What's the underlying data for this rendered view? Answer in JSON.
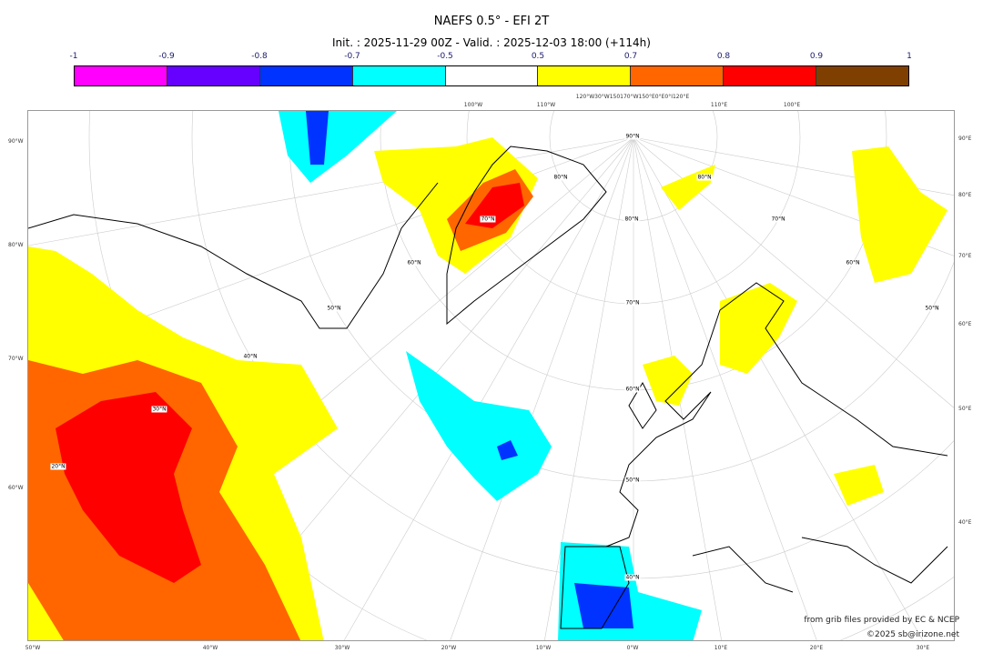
{
  "title": "NAEFS 0.5° - EFI 2T",
  "subtitle": "Init. : 2025-11-29 00Z - Valid. : 2025-12-03 18:00 (+114h)",
  "colorbar": {
    "labels": [
      "-1",
      "-0.9",
      "-0.8",
      "-0.7",
      "-0.5",
      "0.5",
      "0.7",
      "0.8",
      "0.9",
      "1"
    ],
    "colors": [
      "#ff00ff",
      "#6600ff",
      "#0033ff",
      "#00ffff",
      "#ffffff",
      "#ffff00",
      "#ff6600",
      "#ff0000",
      "#7f3f00"
    ]
  },
  "axes": {
    "left": [
      "90°W",
      "80°W",
      "70°W",
      "60°W"
    ],
    "right": [
      "90°E",
      "80°E",
      "70°E",
      "60°E",
      "50°E",
      "40°E"
    ],
    "bottom": [
      "50°W",
      "40°W",
      "30°W",
      "20°W",
      "10°W",
      "0°W",
      "10°E",
      "20°E",
      "30°E"
    ],
    "top": [
      "100°W",
      "110°W",
      "120°W30°W150170°W150°E0°E0°I120°E",
      "110°E",
      "100°E"
    ]
  },
  "lat_labels": [
    "50°N",
    "40°N",
    "30°N",
    "20°N",
    "60°N",
    "70°N",
    "80°N",
    "90°N",
    "80°N",
    "70°N",
    "60°N",
    "50°N",
    "40°N",
    "80°N",
    "70°N",
    "60°N",
    "50°N"
  ],
  "credits": {
    "source": "from grib files provided by EC & NCEP",
    "copyright": "©2025 sb@irizone.net"
  }
}
